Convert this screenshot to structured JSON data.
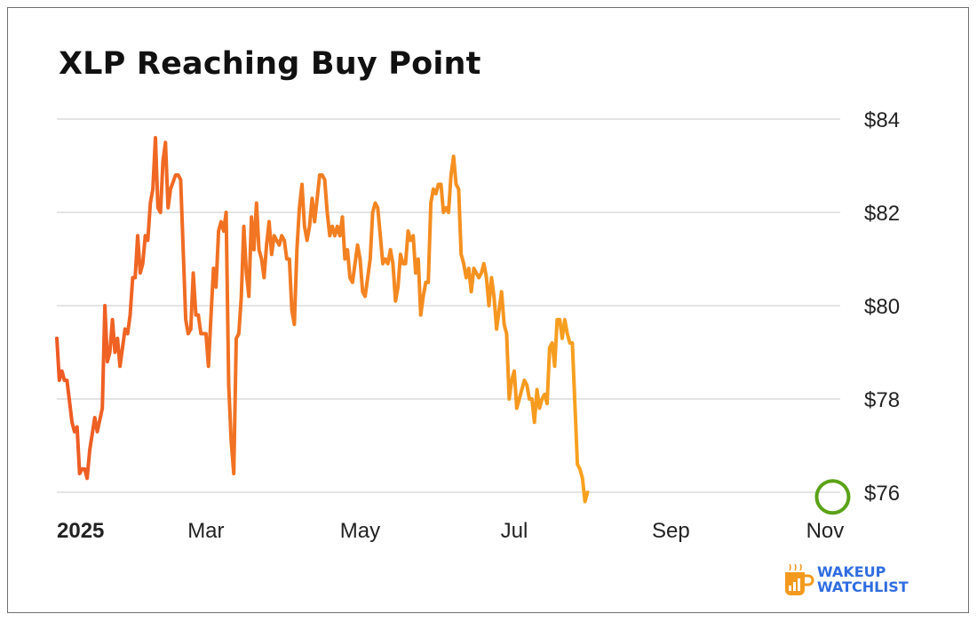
{
  "title": "XLP Reaching Buy Point",
  "brand": {
    "line1": "WAKEUP",
    "line2": "WATCHLIST",
    "text_color": "#2f6de0",
    "mug_color": "#f39a1e",
    "icon": "coffee-mug-chart-icon"
  },
  "colors": {
    "series_start": "#ee5a24",
    "series_end": "#f7a21f",
    "highlight_ring": "#5aa217",
    "grid": "#c8c8c8"
  },
  "chart_data": {
    "type": "line",
    "title": "XLP Reaching Buy Point",
    "xlabel": "",
    "ylabel": "",
    "ylim": [
      75.6,
      84.2
    ],
    "y_axis_position": "right",
    "grid": "horizontal",
    "legend": "none",
    "y_ticks": [
      {
        "value": 84,
        "label": "$84"
      },
      {
        "value": 82,
        "label": "$82"
      },
      {
        "value": 80,
        "label": "$80"
      },
      {
        "value": 78,
        "label": "$78"
      },
      {
        "value": 76,
        "label": "$76"
      }
    ],
    "x_ticks": [
      {
        "day": 0,
        "label": "2025",
        "bold": true
      },
      {
        "day": 59,
        "label": "Mar",
        "bold": false
      },
      {
        "day": 120,
        "label": "May",
        "bold": false
      },
      {
        "day": 181,
        "label": "Jul",
        "bold": false
      },
      {
        "day": 243,
        "label": "Sep",
        "bold": false
      },
      {
        "day": 304,
        "label": "Nov",
        "bold": false
      }
    ],
    "x_range_days": [
      0,
      310
    ],
    "annotation": {
      "type": "circle",
      "day": 307,
      "value": 75.9,
      "label": ""
    },
    "series": [
      {
        "values": [
          [
            0,
            79.3
          ],
          [
            1,
            78.4
          ],
          [
            2,
            78.6
          ],
          [
            3,
            78.4
          ],
          [
            4,
            78.4
          ],
          [
            6,
            77.5
          ],
          [
            7,
            77.3
          ],
          [
            8,
            77.4
          ],
          [
            9,
            76.4
          ],
          [
            10,
            76.5
          ],
          [
            11,
            76.5
          ],
          [
            12,
            76.3
          ],
          [
            13,
            76.9
          ],
          [
            15,
            77.6
          ],
          [
            16,
            77.3
          ],
          [
            18,
            77.8
          ],
          [
            19,
            80.0
          ],
          [
            20,
            78.8
          ],
          [
            21,
            79.0
          ],
          [
            22,
            79.7
          ],
          [
            23,
            79.0
          ],
          [
            24,
            79.3
          ],
          [
            25,
            78.7
          ],
          [
            27,
            79.5
          ],
          [
            28,
            79.4
          ],
          [
            29,
            79.8
          ],
          [
            30,
            80.6
          ],
          [
            31,
            80.6
          ],
          [
            32,
            81.5
          ],
          [
            33,
            80.7
          ],
          [
            34,
            80.9
          ],
          [
            35,
            81.5
          ],
          [
            36,
            81.4
          ],
          [
            37,
            82.2
          ],
          [
            38,
            82.5
          ],
          [
            39,
            83.6
          ],
          [
            40,
            82.1
          ],
          [
            41,
            82.0
          ],
          [
            42,
            83.1
          ],
          [
            43,
            83.5
          ],
          [
            44,
            82.1
          ],
          [
            45,
            82.5
          ],
          [
            47,
            82.8
          ],
          [
            48,
            82.8
          ],
          [
            49,
            82.7
          ],
          [
            51,
            79.7
          ],
          [
            52,
            79.4
          ],
          [
            53,
            79.5
          ],
          [
            54,
            80.7
          ],
          [
            55,
            79.8
          ],
          [
            56,
            79.8
          ],
          [
            57,
            79.4
          ],
          [
            58,
            79.4
          ],
          [
            59,
            79.4
          ],
          [
            60,
            78.7
          ],
          [
            61,
            79.8
          ],
          [
            62,
            80.8
          ],
          [
            63,
            80.4
          ],
          [
            64,
            81.6
          ],
          [
            65,
            81.8
          ],
          [
            66,
            81.6
          ],
          [
            67,
            82.0
          ],
          [
            68,
            78.3
          ],
          [
            69,
            77.1
          ],
          [
            70,
            76.4
          ],
          [
            71,
            79.3
          ],
          [
            72,
            79.4
          ],
          [
            73,
            80.2
          ],
          [
            74,
            81.7
          ],
          [
            75,
            80.7
          ],
          [
            76,
            80.2
          ],
          [
            77,
            81.9
          ],
          [
            78,
            81.2
          ],
          [
            79,
            82.2
          ],
          [
            80,
            81.2
          ],
          [
            81,
            81.0
          ],
          [
            82,
            80.6
          ],
          [
            83,
            81.3
          ],
          [
            84,
            81.8
          ],
          [
            85,
            81.1
          ],
          [
            86,
            81.5
          ],
          [
            87,
            81.4
          ],
          [
            88,
            81.3
          ],
          [
            89,
            81.5
          ],
          [
            90,
            81.4
          ],
          [
            91,
            81.0
          ],
          [
            92,
            81.0
          ],
          [
            93,
            79.9
          ],
          [
            94,
            79.6
          ],
          [
            95,
            81.2
          ],
          [
            96,
            82.1
          ],
          [
            97,
            82.6
          ],
          [
            98,
            81.7
          ],
          [
            99,
            81.4
          ],
          [
            100,
            81.7
          ],
          [
            101,
            82.3
          ],
          [
            102,
            81.8
          ],
          [
            103,
            82.3
          ],
          [
            104,
            82.8
          ],
          [
            105,
            82.8
          ],
          [
            106,
            82.7
          ],
          [
            107,
            82.0
          ],
          [
            108,
            81.5
          ],
          [
            109,
            81.7
          ],
          [
            110,
            81.5
          ],
          [
            111,
            81.7
          ],
          [
            112,
            81.5
          ],
          [
            113,
            81.9
          ],
          [
            114,
            81.0
          ],
          [
            115,
            81.2
          ],
          [
            116,
            80.6
          ],
          [
            117,
            80.5
          ],
          [
            118,
            80.9
          ],
          [
            119,
            81.3
          ],
          [
            120,
            81.0
          ],
          [
            121,
            80.3
          ],
          [
            122,
            80.2
          ],
          [
            123,
            80.6
          ],
          [
            124,
            81.0
          ],
          [
            125,
            82.0
          ],
          [
            126,
            82.2
          ],
          [
            127,
            82.1
          ],
          [
            128,
            81.5
          ],
          [
            129,
            80.9
          ],
          [
            130,
            81.0
          ],
          [
            131,
            80.9
          ],
          [
            132,
            81.2
          ],
          [
            133,
            80.9
          ],
          [
            134,
            80.1
          ],
          [
            135,
            80.4
          ],
          [
            136,
            81.1
          ],
          [
            137,
            80.9
          ],
          [
            138,
            80.9
          ],
          [
            139,
            81.6
          ],
          [
            140,
            81.4
          ],
          [
            141,
            81.5
          ],
          [
            142,
            80.7
          ],
          [
            143,
            81.0
          ],
          [
            144,
            79.8
          ],
          [
            145,
            80.2
          ],
          [
            146,
            80.5
          ],
          [
            147,
            80.5
          ],
          [
            148,
            82.2
          ],
          [
            149,
            82.5
          ],
          [
            150,
            82.4
          ],
          [
            151,
            82.6
          ],
          [
            152,
            82.6
          ],
          [
            153,
            82.0
          ],
          [
            154,
            82.1
          ],
          [
            155,
            82.0
          ],
          [
            156,
            82.8
          ],
          [
            157,
            83.2
          ],
          [
            158,
            82.6
          ],
          [
            159,
            82.5
          ],
          [
            160,
            81.1
          ],
          [
            161,
            80.9
          ],
          [
            162,
            80.6
          ],
          [
            163,
            80.8
          ],
          [
            164,
            80.3
          ],
          [
            165,
            80.8
          ],
          [
            166,
            80.7
          ],
          [
            167,
            80.6
          ],
          [
            168,
            80.7
          ],
          [
            169,
            80.9
          ],
          [
            170,
            80.6
          ],
          [
            171,
            80.0
          ],
          [
            172,
            80.6
          ],
          [
            173,
            80.2
          ],
          [
            174,
            79.5
          ],
          [
            175,
            79.9
          ],
          [
            176,
            80.3
          ],
          [
            177,
            79.6
          ],
          [
            178,
            79.4
          ],
          [
            179,
            78.0
          ],
          [
            180,
            78.4
          ],
          [
            181,
            78.6
          ],
          [
            182,
            77.8
          ],
          [
            183,
            78.0
          ],
          [
            184,
            78.2
          ],
          [
            185,
            78.4
          ],
          [
            186,
            78.3
          ],
          [
            187,
            78.0
          ],
          [
            188,
            78.0
          ],
          [
            189,
            77.5
          ],
          [
            190,
            78.2
          ],
          [
            191,
            77.8
          ],
          [
            192,
            78.0
          ],
          [
            193,
            78.1
          ],
          [
            194,
            77.9
          ],
          [
            195,
            79.1
          ],
          [
            196,
            79.2
          ],
          [
            197,
            78.7
          ],
          [
            198,
            79.7
          ],
          [
            199,
            79.7
          ],
          [
            200,
            79.3
          ],
          [
            201,
            79.7
          ],
          [
            202,
            79.4
          ],
          [
            203,
            79.2
          ],
          [
            204,
            79.2
          ],
          [
            206,
            76.6
          ],
          [
            207,
            76.5
          ],
          [
            208,
            76.3
          ],
          [
            209,
            75.8
          ],
          [
            210,
            76.0
          ]
        ]
      }
    ]
  }
}
